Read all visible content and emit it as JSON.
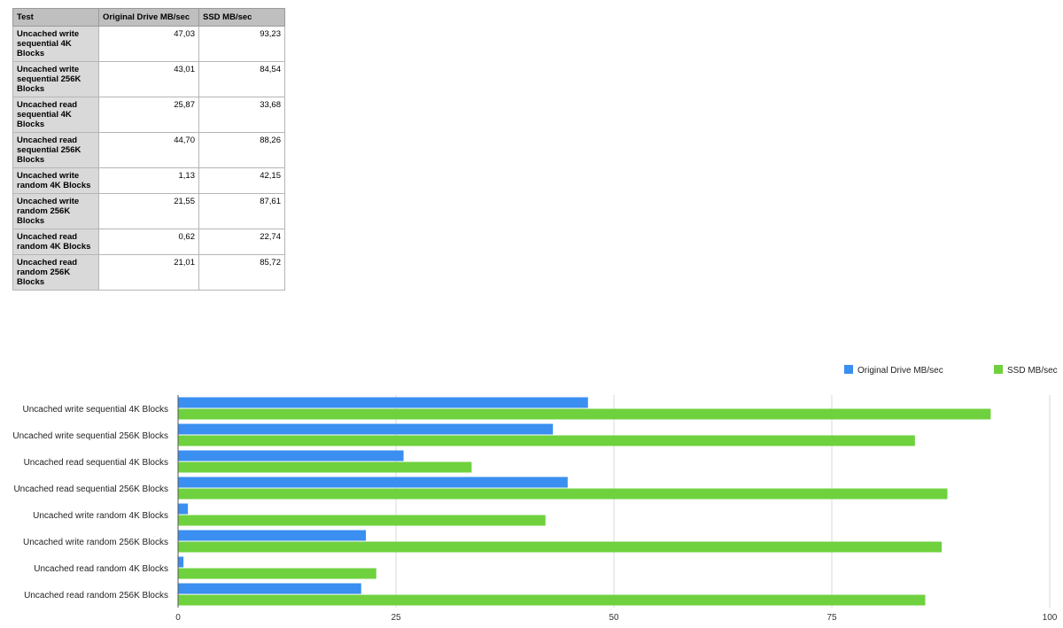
{
  "table": {
    "headers": [
      "Test",
      "Original Drive MB/sec",
      "SSD MB/sec"
    ],
    "rows": [
      {
        "test": "Uncached write sequential 4K Blocks",
        "original": "47,03",
        "ssd": "93,23"
      },
      {
        "test": "Uncached write sequential 256K Blocks",
        "original": "43,01",
        "ssd": "84,54"
      },
      {
        "test": "Uncached read sequential 4K Blocks",
        "original": "25,87",
        "ssd": "33,68"
      },
      {
        "test": "Uncached read sequential 256K Blocks",
        "original": "44,70",
        "ssd": "88,26"
      },
      {
        "test": "Uncached write random 4K Blocks",
        "original": "1,13",
        "ssd": "42,15"
      },
      {
        "test": "Uncached write random 256K Blocks",
        "original": "21,55",
        "ssd": "87,61"
      },
      {
        "test": "Uncached read random 4K Blocks",
        "original": "0,62",
        "ssd": "22,74"
      },
      {
        "test": "Uncached read random 256K Blocks",
        "original": "21,01",
        "ssd": "85,72"
      }
    ]
  },
  "chart_data": {
    "type": "bar",
    "orientation": "horizontal",
    "categories": [
      "Uncached write sequential 4K Blocks",
      "Uncached write sequential 256K Blocks",
      "Uncached read sequential 4K Blocks",
      "Uncached read sequential 256K Blocks",
      "Uncached write random 4K Blocks",
      "Uncached write random 256K Blocks",
      "Uncached read random 4K Blocks",
      "Uncached read random 256K Blocks"
    ],
    "series": [
      {
        "name": "Original Drive MB/sec",
        "color": "#3a8ff0",
        "values": [
          47.03,
          43.01,
          25.87,
          44.7,
          1.13,
          21.55,
          0.62,
          21.01
        ]
      },
      {
        "name": "SSD MB/sec",
        "color": "#6fd13e",
        "values": [
          93.23,
          84.54,
          33.68,
          88.26,
          42.15,
          87.61,
          22.74,
          85.72
        ]
      }
    ],
    "xlim": [
      0,
      100
    ],
    "xticks": [
      0,
      25,
      50,
      75,
      100
    ],
    "grid": true,
    "legend": "top-right"
  }
}
